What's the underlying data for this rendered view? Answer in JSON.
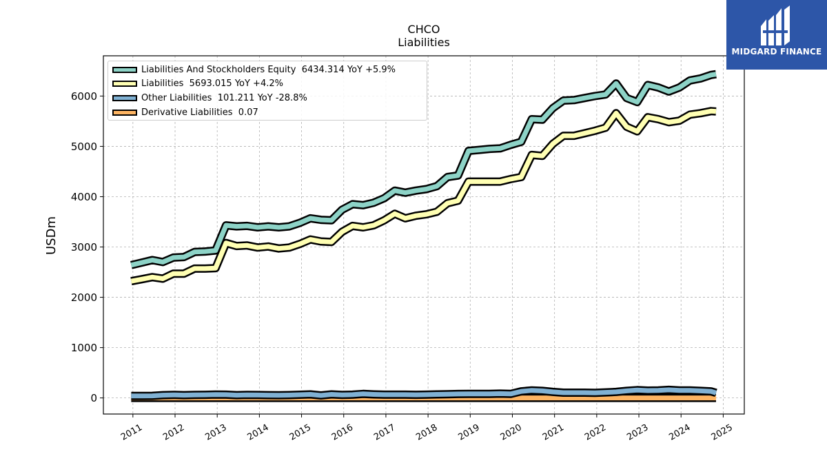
{
  "chart_data": {
    "type": "line",
    "title": "CHCO",
    "subtitle": "Liabilities",
    "ylabel": "USDm",
    "xlabel": "",
    "ylim": [
      -320,
      6800
    ],
    "xlim": [
      2010.3,
      2025.5
    ],
    "grid": true,
    "legend_position": "top-left",
    "y_ticks": [
      "0",
      "1000",
      "2000",
      "3000",
      "4000",
      "5000",
      "6000"
    ],
    "x_ticks": [
      "2011",
      "2012",
      "2013",
      "2014",
      "2015",
      "2016",
      "2017",
      "2018",
      "2019",
      "2020",
      "2021",
      "2022",
      "2023",
      "2024",
      "2025"
    ],
    "x": [
      2010.96,
      2011.21,
      2011.46,
      2011.71,
      2011.96,
      2012.21,
      2012.46,
      2012.71,
      2012.96,
      2013.21,
      2013.46,
      2013.71,
      2013.96,
      2014.21,
      2014.46,
      2014.71,
      2014.96,
      2015.21,
      2015.46,
      2015.71,
      2015.96,
      2016.21,
      2016.46,
      2016.71,
      2016.96,
      2017.21,
      2017.46,
      2017.71,
      2017.96,
      2018.21,
      2018.46,
      2018.71,
      2018.96,
      2019.21,
      2019.46,
      2019.71,
      2019.96,
      2020.21,
      2020.46,
      2020.71,
      2020.96,
      2021.21,
      2021.46,
      2021.71,
      2021.96,
      2022.21,
      2022.46,
      2022.71,
      2022.96,
      2023.21,
      2023.46,
      2023.71,
      2023.96,
      2024.21,
      2024.46,
      2024.71,
      2024.83
    ],
    "series": [
      {
        "name": "Liabilities And Stockholders Equity",
        "legend": "Liabilities And Stockholders Equity  6434.314 YoY +5.9%",
        "color": "#8dd3c7",
        "values": [
          2640,
          2690,
          2740,
          2700,
          2790,
          2800,
          2900,
          2910,
          2930,
          3430,
          3410,
          3420,
          3390,
          3410,
          3390,
          3410,
          3480,
          3570,
          3540,
          3530,
          3740,
          3850,
          3830,
          3880,
          3970,
          4120,
          4080,
          4120,
          4150,
          4210,
          4390,
          4420,
          4910,
          4930,
          4950,
          4960,
          5030,
          5090,
          5540,
          5530,
          5760,
          5910,
          5920,
          5960,
          6000,
          6030,
          6250,
          5960,
          5880,
          6220,
          6170,
          6090,
          6170,
          6310,
          6350,
          6420,
          6434
        ]
      },
      {
        "name": "Liabilities",
        "legend": "Liabilities  5693.015 YoY +4.2%",
        "color": "#ffffb3",
        "values": [
          2320,
          2360,
          2400,
          2370,
          2470,
          2470,
          2570,
          2570,
          2580,
          3080,
          3020,
          3030,
          2990,
          3010,
          2970,
          2990,
          3060,
          3150,
          3110,
          3100,
          3300,
          3420,
          3390,
          3430,
          3530,
          3660,
          3570,
          3620,
          3650,
          3700,
          3870,
          3920,
          4300,
          4300,
          4300,
          4300,
          4350,
          4390,
          4830,
          4810,
          5050,
          5210,
          5210,
          5260,
          5310,
          5370,
          5660,
          5390,
          5300,
          5580,
          5540,
          5480,
          5510,
          5630,
          5660,
          5700,
          5693
        ]
      },
      {
        "name": "Other Liabilities",
        "legend": "Other Liabilities  101.211 YoY -28.8%",
        "color": "#80b1d3",
        "values": [
          40,
          40,
          42,
          55,
          60,
          55,
          60,
          62,
          66,
          65,
          55,
          60,
          58,
          55,
          52,
          56,
          63,
          70,
          50,
          70,
          60,
          65,
          80,
          70,
          65,
          65,
          65,
          62,
          65,
          70,
          74,
          78,
          80,
          80,
          80,
          85,
          80,
          130,
          150,
          140,
          120,
          105,
          105,
          105,
          100,
          110,
          120,
          140,
          155,
          145,
          150,
          160,
          150,
          150,
          140,
          130,
          101
        ]
      },
      {
        "name": "Derivative Liabilities",
        "legend": "Derivative Liabilities  0.07",
        "color": "#fdb462",
        "values": [
          0.07,
          0.07,
          0.07,
          0.07,
          0.07,
          0.07,
          0.07,
          0.07,
          0.07,
          0.07,
          0.07,
          0.07,
          0.07,
          0.07,
          0.07,
          0.07,
          0.07,
          0.07,
          0.07,
          0.07,
          0.07,
          0.07,
          0.07,
          0.07,
          0.07,
          0.07,
          0.07,
          0.07,
          0.07,
          0.07,
          0.07,
          0.07,
          0.07,
          0.07,
          0.07,
          0.07,
          0.07,
          0.07,
          0.07,
          0.07,
          0.07,
          0.07,
          0.07,
          0.07,
          0.07,
          0.07,
          0.07,
          0.07,
          0.07,
          0.07,
          0.07,
          0.07,
          0.07,
          0.07,
          0.07,
          0.07,
          0.07
        ]
      }
    ]
  },
  "logo": {
    "text": "MIDGARD FINANCE",
    "color": "#2d56a8"
  }
}
